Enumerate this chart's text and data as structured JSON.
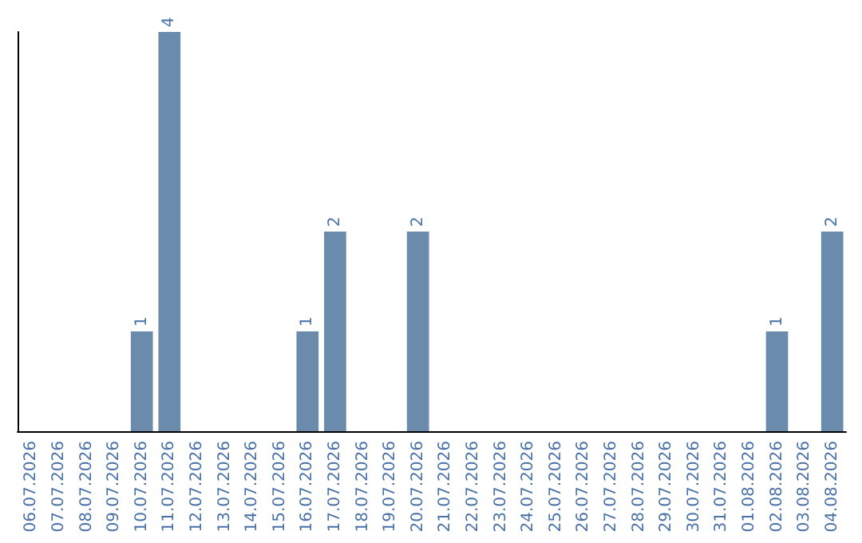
{
  "chart_data": {
    "type": "bar",
    "categories": [
      "06.07.2026",
      "07.07.2026",
      "08.07.2026",
      "09.07.2026",
      "10.07.2026",
      "11.07.2026",
      "12.07.2026",
      "13.07.2026",
      "14.07.2026",
      "15.07.2026",
      "16.07.2026",
      "17.07.2026",
      "18.07.2026",
      "19.07.2026",
      "20.07.2026",
      "21.07.2026",
      "22.07.2026",
      "23.07.2026",
      "24.07.2026",
      "25.07.2026",
      "26.07.2026",
      "27.07.2026",
      "28.07.2026",
      "29.07.2026",
      "30.07.2026",
      "31.07.2026",
      "01.08.2026",
      "02.08.2026",
      "03.08.2026",
      "04.08.2026"
    ],
    "values": [
      0,
      0,
      0,
      0,
      1,
      4,
      0,
      0,
      0,
      0,
      1,
      2,
      0,
      0,
      2,
      0,
      0,
      0,
      0,
      0,
      0,
      0,
      0,
      0,
      0,
      0,
      0,
      1,
      0,
      2
    ],
    "value_labels": [
      null,
      null,
      null,
      null,
      "1",
      "4",
      null,
      null,
      null,
      null,
      "1",
      "2",
      null,
      null,
      "2",
      null,
      null,
      null,
      null,
      null,
      null,
      null,
      null,
      null,
      null,
      null,
      null,
      "1",
      null,
      "2"
    ],
    "color": "#6a8bab",
    "ylim": [
      0,
      4
    ],
    "tick_labels": "x"
  }
}
